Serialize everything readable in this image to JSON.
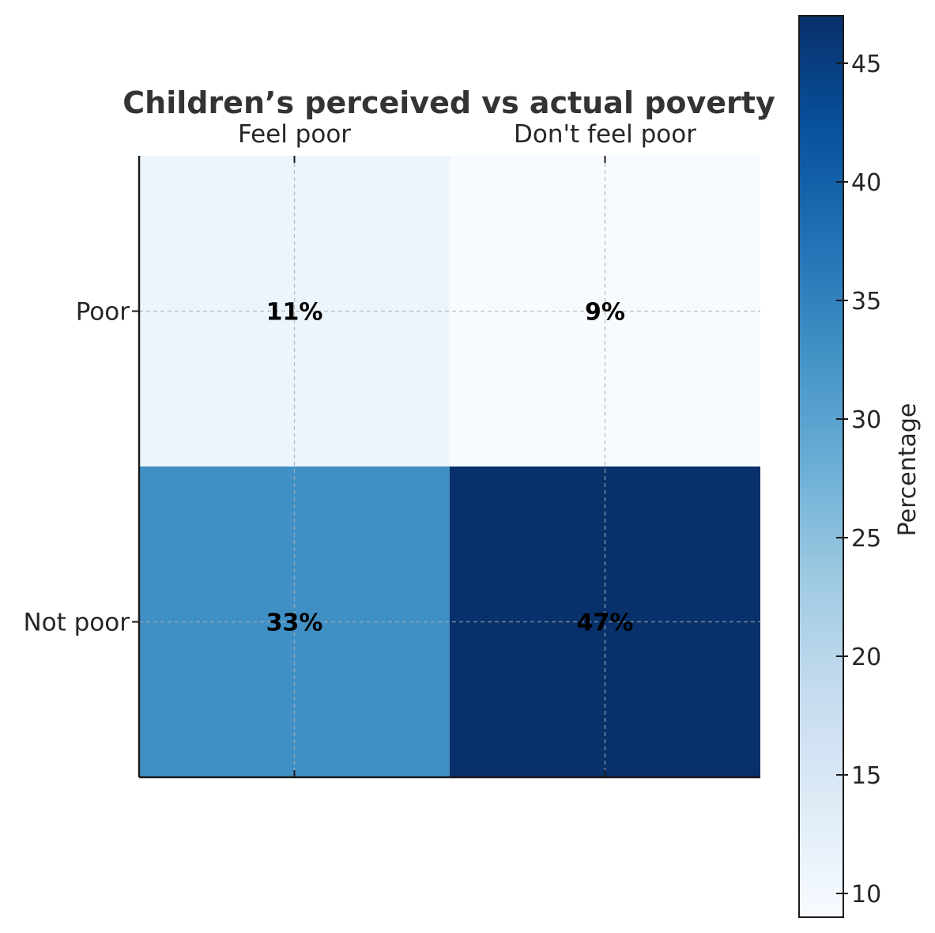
{
  "chart_data": {
    "type": "heatmap",
    "title": "Children’s perceived vs actual poverty",
    "columns": [
      "Feel poor",
      "Don't feel poor"
    ],
    "rows": [
      "Poor",
      "Not poor"
    ],
    "values": [
      [
        11,
        9
      ],
      [
        33,
        47
      ]
    ],
    "cell_labels": [
      [
        "11%",
        "9%"
      ],
      [
        "33%",
        "47%"
      ]
    ],
    "colorbar": {
      "label": "Percentage",
      "range": [
        9,
        47
      ],
      "ticks": [
        10,
        15,
        20,
        25,
        30,
        35,
        40,
        45
      ],
      "tick_labels": [
        "10",
        "15",
        "20",
        "25",
        "30",
        "35",
        "40",
        "45"
      ],
      "colormap": "Blues"
    },
    "grid": true
  }
}
